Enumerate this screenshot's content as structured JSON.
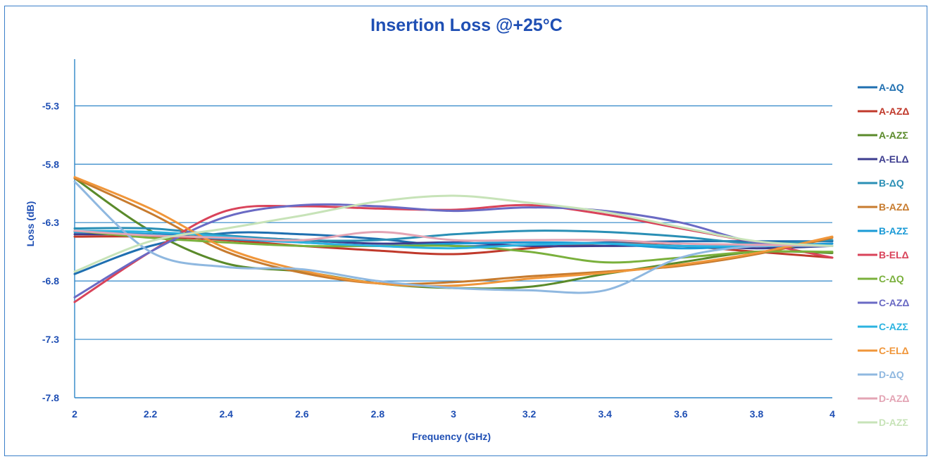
{
  "chart_data": {
    "type": "line",
    "title": "Insertion Loss @+25°C",
    "xlabel": "Frequency (GHz)",
    "ylabel": "Loss (dB)",
    "xlim": [
      2,
      4
    ],
    "ylim": [
      -7.8,
      -4.9
    ],
    "x_ticks": [
      "2",
      "2.2",
      "2.4",
      "2.6",
      "2.8",
      "3",
      "3.2",
      "3.4",
      "3.6",
      "3.8",
      "4"
    ],
    "y_ticks": [
      "-5.3",
      "-5.8",
      "-6.3",
      "-6.8",
      "-7.3",
      "-7.8"
    ],
    "grid": "horizontal",
    "legend_position": "right",
    "x": [
      2.0,
      2.2,
      2.4,
      2.6,
      2.8,
      3.0,
      3.2,
      3.4,
      3.6,
      3.8,
      4.0
    ],
    "series": [
      {
        "name": "A-ΔQ",
        "color": "#1f6fb0",
        "values": [
          -6.74,
          -6.5,
          -6.39,
          -6.4,
          -6.44,
          -6.5,
          -6.49,
          -6.47,
          -6.46,
          -6.46,
          -6.46
        ]
      },
      {
        "name": "A-AZΔ",
        "color": "#c0392b",
        "values": [
          -6.42,
          -6.42,
          -6.45,
          -6.5,
          -6.54,
          -6.57,
          -6.52,
          -6.48,
          -6.5,
          -6.55,
          -6.6
        ]
      },
      {
        "name": "A-AZΣ",
        "color": "#5a8a2a",
        "values": [
          -5.92,
          -6.37,
          -6.65,
          -6.72,
          -6.82,
          -6.86,
          -6.85,
          -6.74,
          -6.64,
          -6.55,
          -6.56
        ]
      },
      {
        "name": "A-ELΔ",
        "color": "#3d3d8f",
        "values": [
          -6.4,
          -6.4,
          -6.42,
          -6.45,
          -6.48,
          -6.47,
          -6.5,
          -6.5,
          -6.5,
          -6.52,
          -6.5
        ]
      },
      {
        "name": "B-ΔQ",
        "color": "#2a8fb5",
        "values": [
          -6.35,
          -6.35,
          -6.41,
          -6.45,
          -6.45,
          -6.4,
          -6.37,
          -6.38,
          -6.42,
          -6.48,
          -6.45
        ]
      },
      {
        "name": "B-AZΔ",
        "color": "#c77b2e",
        "values": [
          -5.92,
          -6.22,
          -6.55,
          -6.73,
          -6.82,
          -6.81,
          -6.76,
          -6.72,
          -6.67,
          -6.57,
          -6.43
        ]
      },
      {
        "name": "B-AZΣ",
        "color": "#1a9ad6",
        "values": [
          -6.38,
          -6.4,
          -6.44,
          -6.47,
          -6.5,
          -6.48,
          -6.47,
          -6.48,
          -6.52,
          -6.5,
          -6.48
        ]
      },
      {
        "name": "B-ELΔ",
        "color": "#d9435a",
        "values": [
          -6.98,
          -6.55,
          -6.2,
          -6.16,
          -6.18,
          -6.19,
          -6.15,
          -6.23,
          -6.35,
          -6.47,
          -6.6
        ]
      },
      {
        "name": "C-ΔQ",
        "color": "#7ab03c",
        "values": [
          -6.37,
          -6.43,
          -6.47,
          -6.5,
          -6.5,
          -6.5,
          -6.55,
          -6.64,
          -6.6,
          -6.55,
          -6.55
        ]
      },
      {
        "name": "C-AZΔ",
        "color": "#6a6ac4",
        "values": [
          -6.94,
          -6.55,
          -6.25,
          -6.15,
          -6.16,
          -6.2,
          -6.17,
          -6.2,
          -6.3,
          -6.47,
          -6.5
        ]
      },
      {
        "name": "C-AZΣ",
        "color": "#2bb3e0",
        "values": [
          -6.37,
          -6.38,
          -6.42,
          -6.47,
          -6.5,
          -6.52,
          -6.49,
          -6.48,
          -6.5,
          -6.5,
          -6.5
        ]
      },
      {
        "name": "C-ELΔ",
        "color": "#f0963a",
        "values": [
          -5.91,
          -6.18,
          -6.52,
          -6.71,
          -6.82,
          -6.84,
          -6.78,
          -6.73,
          -6.66,
          -6.56,
          -6.42
        ]
      },
      {
        "name": "D-ΔQ",
        "color": "#8fb8e0",
        "values": [
          -5.95,
          -6.55,
          -6.68,
          -6.7,
          -6.8,
          -6.86,
          -6.88,
          -6.88,
          -6.6,
          -6.5,
          -6.5
        ]
      },
      {
        "name": "D-AZΔ",
        "color": "#e3a4b4",
        "values": [
          -6.37,
          -6.41,
          -6.43,
          -6.45,
          -6.38,
          -6.45,
          -6.45,
          -6.45,
          -6.48,
          -6.49,
          -6.5
        ]
      },
      {
        "name": "D-AZΣ",
        "color": "#c7e3b8",
        "values": [
          -6.72,
          -6.46,
          -6.35,
          -6.24,
          -6.12,
          -6.07,
          -6.13,
          -6.21,
          -6.34,
          -6.46,
          -6.5
        ]
      }
    ]
  }
}
